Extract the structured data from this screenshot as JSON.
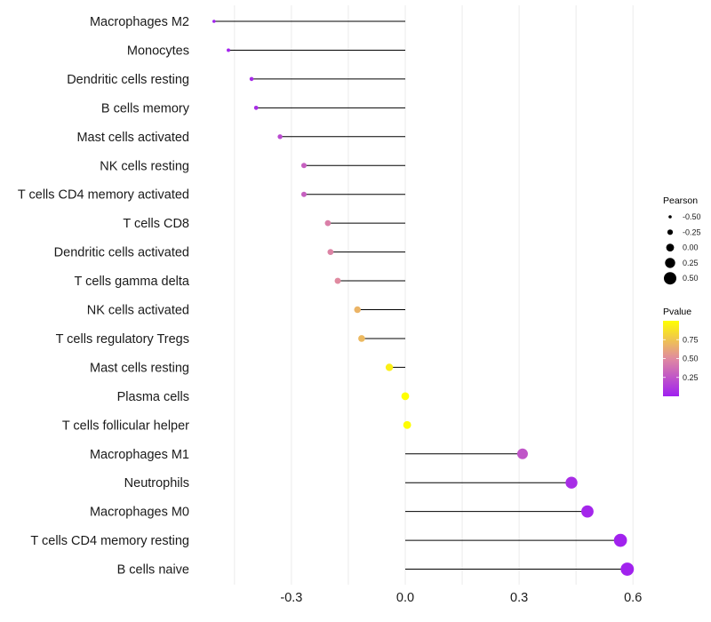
{
  "chart_data": {
    "type": "lollipop",
    "title": "",
    "xlabel": "",
    "ylabel": "",
    "xlim": [
      -0.52,
      0.62
    ],
    "xticks": [
      -0.3,
      0.0,
      0.3,
      0.6
    ],
    "xtick_labels": [
      "-0.3",
      "0.0",
      "0.3",
      "0.6"
    ],
    "minor_gridlines": [
      -0.45,
      -0.15,
      0.15,
      0.45
    ],
    "grid": true,
    "categories": [
      "Macrophages M2",
      "Monocytes",
      "Dendritic cells resting",
      "B cells memory",
      "Mast cells activated",
      "NK cells resting",
      "T cells CD4 memory activated",
      "T cells CD8",
      "Dendritic cells activated",
      "T cells gamma delta",
      "NK cells activated",
      "T cells regulatory  Tregs",
      "Mast cells resting",
      "Plasma cells",
      "T cells follicular helper",
      "Macrophages M1",
      "Neutrophils",
      "Macrophages M0",
      "T cells CD4 memory resting",
      "B cells naive"
    ],
    "pearson": [
      -0.504,
      -0.466,
      -0.405,
      -0.393,
      -0.33,
      -0.267,
      -0.267,
      -0.204,
      -0.197,
      -0.178,
      -0.126,
      -0.115,
      -0.042,
      0.0,
      0.005,
      0.309,
      0.438,
      0.48,
      0.567,
      0.585
    ],
    "pvalue": [
      0.01,
      0.02,
      0.05,
      0.06,
      0.2,
      0.3,
      0.3,
      0.45,
      0.47,
      0.5,
      0.68,
      0.7,
      0.93,
      1.0,
      0.99,
      0.25,
      0.06,
      0.03,
      0.01,
      0.01
    ],
    "legend": {
      "size": {
        "title": "Pearson",
        "values": [
          -0.5,
          -0.25,
          0.0,
          0.25,
          0.5
        ],
        "labels": [
          "-0.50",
          "-0.25",
          "0.00",
          "0.25",
          "0.50"
        ]
      },
      "color": {
        "title": "Pvalue",
        "ticks": [
          0.25,
          0.5,
          0.75
        ],
        "labels": [
          "0.25",
          "0.50",
          "0.75"
        ],
        "range": [
          0,
          1
        ],
        "low_color": "#a020f0",
        "mid_color": "#e08aa0",
        "high_color": "#ffff00"
      },
      "placement": "right"
    },
    "segment_color": "#000000",
    "grid_color": "#ebebeb"
  }
}
